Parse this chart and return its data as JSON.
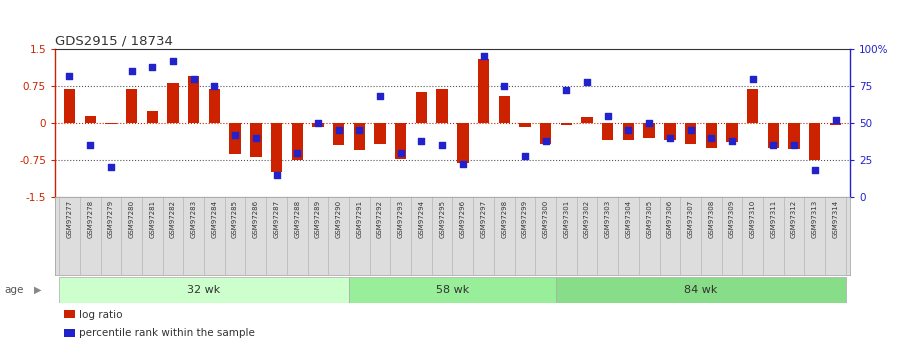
{
  "title": "GDS2915 / 18734",
  "samples": [
    "GSM97277",
    "GSM97278",
    "GSM97279",
    "GSM97280",
    "GSM97281",
    "GSM97282",
    "GSM97283",
    "GSM97284",
    "GSM97285",
    "GSM97286",
    "GSM97287",
    "GSM97288",
    "GSM97289",
    "GSM97290",
    "GSM97291",
    "GSM97292",
    "GSM97293",
    "GSM97294",
    "GSM97295",
    "GSM97296",
    "GSM97297",
    "GSM97298",
    "GSM97299",
    "GSM97300",
    "GSM97301",
    "GSM97302",
    "GSM97303",
    "GSM97304",
    "GSM97305",
    "GSM97306",
    "GSM97307",
    "GSM97308",
    "GSM97309",
    "GSM97310",
    "GSM97311",
    "GSM97312",
    "GSM97313",
    "GSM97314"
  ],
  "log_ratio": [
    0.68,
    0.15,
    -0.03,
    0.68,
    0.25,
    0.82,
    0.95,
    0.68,
    -0.62,
    -0.68,
    -1.0,
    -0.75,
    -0.08,
    -0.45,
    -0.55,
    -0.42,
    -0.72,
    0.62,
    0.68,
    -0.82,
    1.3,
    0.55,
    -0.08,
    -0.42,
    -0.05,
    0.12,
    -0.35,
    -0.35,
    -0.3,
    -0.35,
    -0.42,
    -0.5,
    -0.38,
    0.68,
    -0.5,
    -0.52,
    -0.75,
    -0.05
  ],
  "percentile": [
    82,
    35,
    20,
    85,
    88,
    92,
    80,
    75,
    42,
    40,
    15,
    30,
    50,
    45,
    45,
    68,
    30,
    38,
    35,
    22,
    95,
    75,
    28,
    38,
    72,
    78,
    55,
    45,
    50,
    40,
    45,
    40,
    38,
    80,
    35,
    35,
    18,
    52
  ],
  "groups": [
    {
      "label": "32 wk",
      "start": 0,
      "end": 14
    },
    {
      "label": "58 wk",
      "start": 14,
      "end": 24
    },
    {
      "label": "84 wk",
      "start": 24,
      "end": 38
    }
  ],
  "ylim": [
    -1.5,
    1.5
  ],
  "yticks_left": [
    -1.5,
    -0.75,
    0.0,
    0.75,
    1.5
  ],
  "yticks_right_vals": [
    0,
    25,
    50,
    75,
    100
  ],
  "bar_color": "#cc2200",
  "dot_color": "#2222cc",
  "tick_label_bg": "#dddddd",
  "group_colors": [
    "#ccffcc",
    "#99ee99",
    "#88dd88"
  ],
  "legend_bar_label": "log ratio",
  "legend_dot_label": "percentile rank within the sample",
  "age_label": "age"
}
